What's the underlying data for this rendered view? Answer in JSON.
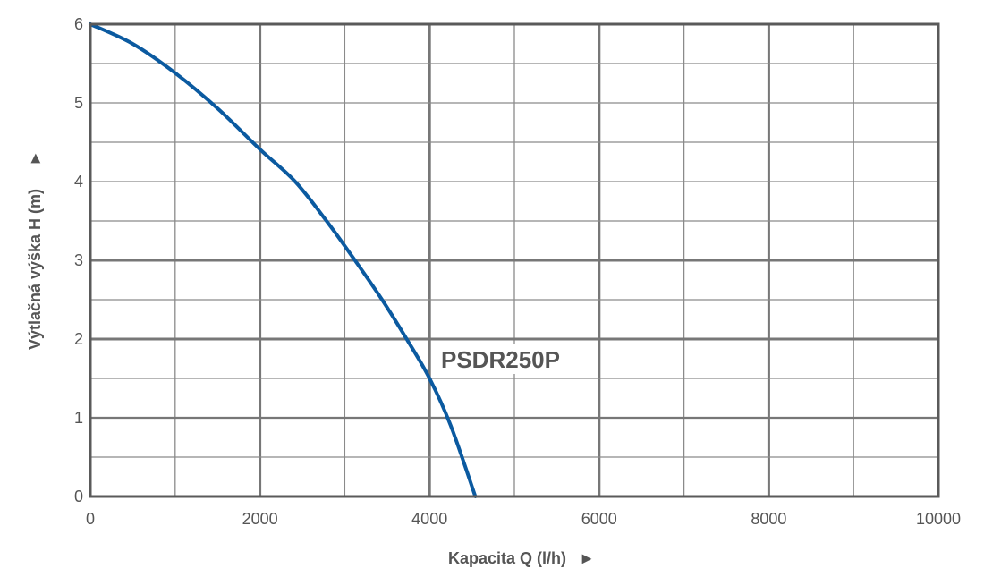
{
  "chart_data": {
    "type": "line",
    "title": "",
    "xlabel": "Kapacita Q (l/h)",
    "ylabel": "Výtlačná výška H (m)",
    "xlim": [
      0,
      10000
    ],
    "ylim": [
      0,
      6
    ],
    "x_ticks": [
      "0",
      "2000",
      "4000",
      "6000",
      "8000",
      "10000"
    ],
    "y_ticks": [
      "0",
      "1",
      "2",
      "3",
      "4",
      "5",
      "6"
    ],
    "grid": true,
    "legend": "none",
    "annotations": [
      {
        "text": "PSDR250P",
        "x": 4100,
        "y": 1.75
      }
    ],
    "series": [
      {
        "name": "PSDR250P",
        "color": "#0b5aa0",
        "x": [
          0,
          500,
          1000,
          1500,
          2000,
          2415,
          2785,
          3120,
          3440,
          3730,
          4000,
          4250,
          4540
        ],
        "y": [
          6.0,
          5.75,
          5.38,
          4.93,
          4.41,
          4.0,
          3.5,
          3.0,
          2.5,
          2.0,
          1.5,
          0.9,
          0.0
        ]
      }
    ]
  },
  "axes": {
    "x_arrow": "►",
    "y_arrow": "►"
  },
  "colors": {
    "curve": "#0b5aa0",
    "grid_major": "#777777",
    "grid_minor": "#8a8a8a",
    "text": "#555555"
  }
}
